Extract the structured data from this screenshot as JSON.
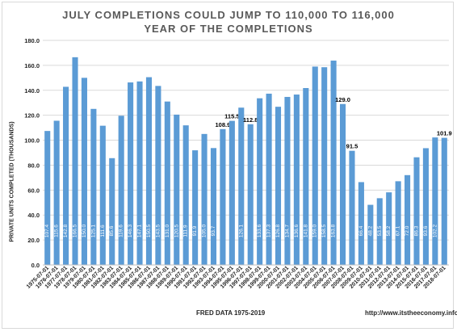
{
  "chart_data": {
    "type": "bar",
    "title": "JULY COMPLETIONS COULD JUMP TO 110,000 TO 116,000",
    "subtitle": "YEAR OF THE COMPLETIONS",
    "ylabel": "PRIVATE UNITS COMPLETED (THOUSANDS)",
    "xlabel": "",
    "ylim": [
      0,
      180
    ],
    "yticks": [
      "0.0",
      "20.0",
      "40.0",
      "60.0",
      "80.0",
      "100.0",
      "120.0",
      "140.0",
      "160.0",
      "180.0"
    ],
    "grid": true,
    "bar_color": "#5b9bd5",
    "categories": [
      "1975-07-01",
      "1976-07-01",
      "1977-07-01",
      "1978-07-01",
      "1979-07-01",
      "1980-07-01",
      "1981-07-01",
      "1982-07-01",
      "1983-07-01",
      "1984-07-01",
      "1985-07-01",
      "1986-07-01",
      "1987-07-01",
      "1988-07-01",
      "1989-07-01",
      "1990-07-01",
      "1991-07-01",
      "1992-07-01",
      "1993-07-01",
      "1994-07-01",
      "1995-07-01",
      "1996-07-01",
      "1997-07-01",
      "1998-07-01",
      "1999-07-01",
      "2000-07-01",
      "2001-07-01",
      "2002-07-01",
      "2003-07-01",
      "2004-07-01",
      "2005-07-01",
      "2006-07-01",
      "2007-07-01",
      "2008-07-01",
      "2009-07-01",
      "2010-07-01",
      "2011-07-01",
      "2012-07-01",
      "2013-07-01",
      "2014-07-01",
      "2015-07-01",
      "2016-07-01",
      "2017-07-01",
      "2018-07-01"
    ],
    "values": [
      107.4,
      115.6,
      142.8,
      166.5,
      150.0,
      125.1,
      111.6,
      85.6,
      119.6,
      146.3,
      147.1,
      150.5,
      143.5,
      131.0,
      120.5,
      111.9,
      91.9,
      105.0,
      93.7,
      108.9,
      115.5,
      126.1,
      112.8,
      133.6,
      137.3,
      126.8,
      134.7,
      136.6,
      141.8,
      159.0,
      158.5,
      163.8,
      129.0,
      91.5,
      66.4,
      48.2,
      53.5,
      58.2,
      67.1,
      72.0,
      86.3,
      93.6,
      102.2,
      101.9
    ],
    "labels": [
      "107.4",
      "115.6",
      "142.8",
      "166.5",
      "150.0",
      "125.1",
      "111.6",
      "85.6",
      "119.6",
      "146.3",
      "147.1",
      "150.5",
      "143.5",
      "131.0",
      "120.5",
      "111.9",
      "91.9",
      "105.0",
      "93.7",
      "108.9",
      "115.5",
      "126.1",
      "112.8",
      "133.6",
      "137.3",
      "126.8",
      "134.7",
      "136.6",
      "141.8",
      "159.0",
      "158.5",
      "163.8",
      "129.0",
      "91.5",
      "66.4",
      "48.2",
      "53.5",
      "58.2",
      "67.1",
      "72.0",
      "86.3",
      "93.6",
      "102.2",
      "101.9"
    ],
    "outside_labels": [
      19,
      20,
      22,
      32,
      33,
      43
    ]
  },
  "footer": {
    "source": "FRED DATA 1975-2019",
    "website": "http://www.itstheeconomy.info/"
  }
}
